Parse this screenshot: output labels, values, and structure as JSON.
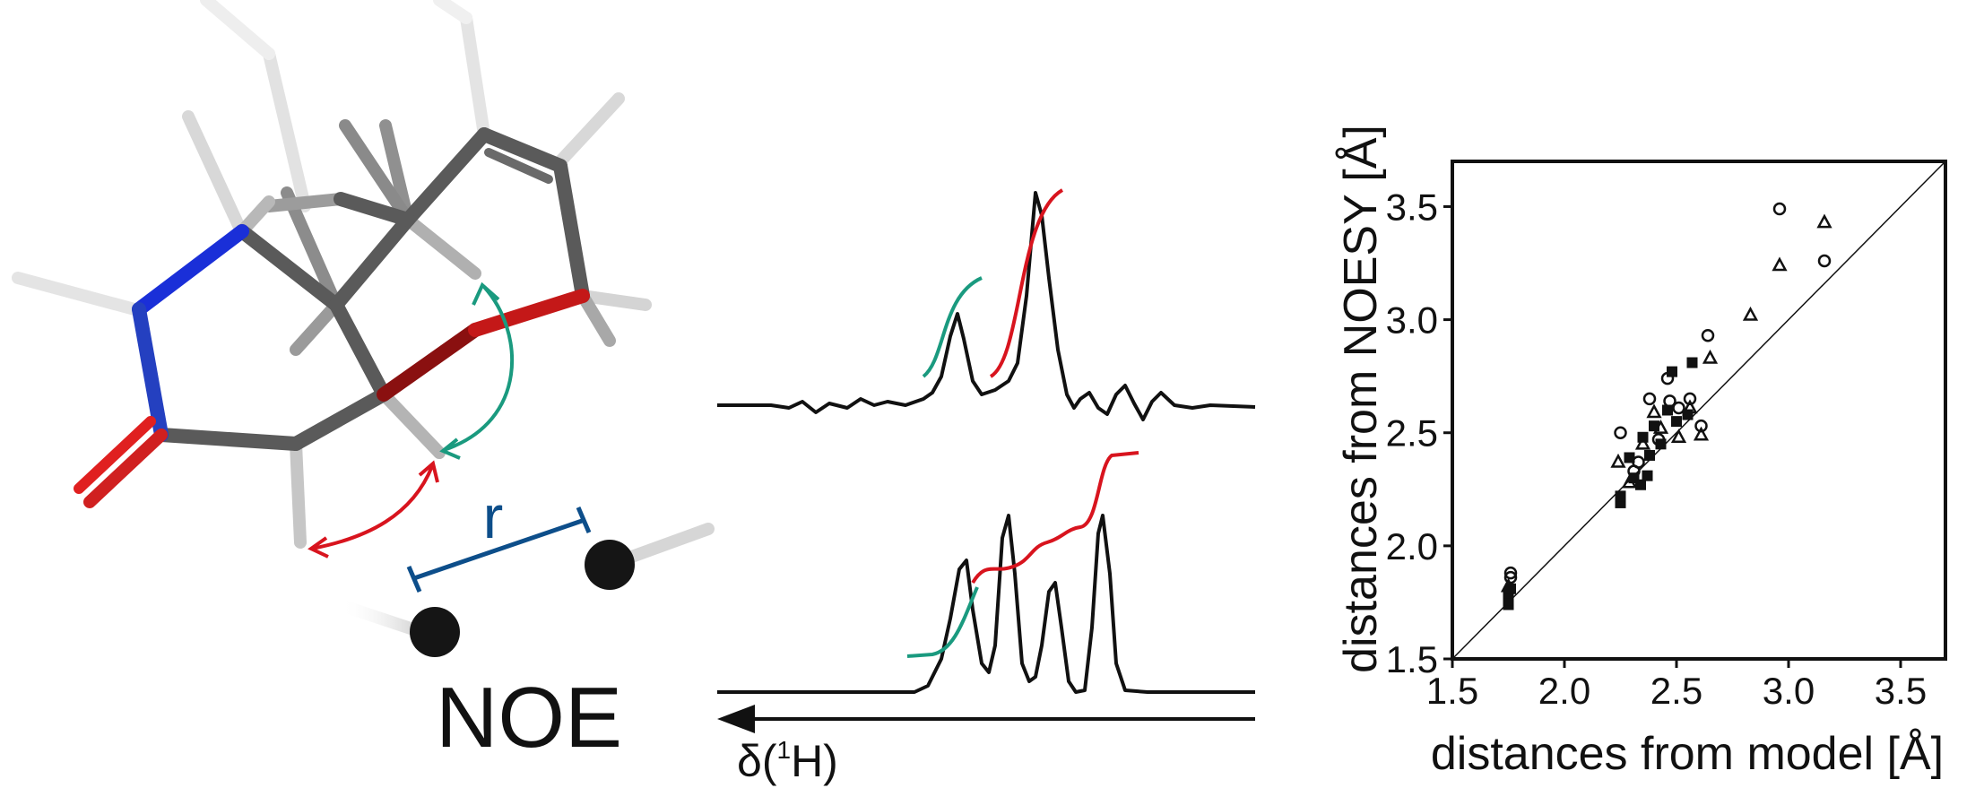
{
  "molecule_panel": {
    "distance_label": "r",
    "title": "NOE"
  },
  "spectra_panel": {
    "axis_label_delta": "δ(",
    "axis_label_sup": "1",
    "axis_label_end": "H)"
  },
  "colors": {
    "noe_arrow_red": "#d8141e",
    "noe_arrow_green": "#1a9a7f",
    "distance_bar_blue": "#0d4e8a",
    "oxygen_red": "#e02020",
    "nitrogen_blue": "#1a2fd8",
    "carbon_grey": "#5a5a5a"
  },
  "chart_data": {
    "type": "scatter",
    "xlabel": "distances from model [Å]",
    "ylabel": "distances from NOESY [Å]",
    "xlim": [
      1.5,
      3.7
    ],
    "ylim": [
      1.5,
      3.7
    ],
    "xticks": [
      "1.5",
      "2.0",
      "2.5",
      "3.0",
      "3.5"
    ],
    "yticks": [
      "1.5",
      "2.0",
      "2.5",
      "3.0",
      "3.5"
    ],
    "diagonal": true,
    "series": [
      {
        "marker": "circle",
        "points": [
          [
            1.76,
            1.88
          ],
          [
            1.76,
            1.86
          ],
          [
            2.25,
            2.5
          ],
          [
            2.31,
            2.33
          ],
          [
            2.33,
            2.37
          ],
          [
            2.38,
            2.65
          ],
          [
            2.42,
            2.47
          ],
          [
            2.46,
            2.74
          ],
          [
            2.47,
            2.64
          ],
          [
            2.51,
            2.61
          ],
          [
            2.56,
            2.65
          ],
          [
            2.61,
            2.53
          ],
          [
            2.64,
            2.93
          ],
          [
            2.96,
            3.49
          ],
          [
            3.16,
            3.26
          ]
        ]
      },
      {
        "marker": "triangle",
        "points": [
          [
            1.75,
            1.82
          ],
          [
            2.24,
            2.37
          ],
          [
            2.29,
            2.28
          ],
          [
            2.35,
            2.45
          ],
          [
            2.4,
            2.59
          ],
          [
            2.43,
            2.52
          ],
          [
            2.51,
            2.48
          ],
          [
            2.56,
            2.61
          ],
          [
            2.61,
            2.49
          ],
          [
            2.65,
            2.83
          ],
          [
            2.83,
            3.02
          ],
          [
            2.96,
            3.24
          ],
          [
            3.16,
            3.43
          ]
        ]
      },
      {
        "marker": "square",
        "points": [
          [
            1.75,
            1.74
          ],
          [
            1.75,
            1.76
          ],
          [
            1.75,
            1.79
          ],
          [
            1.76,
            1.81
          ],
          [
            2.25,
            2.19
          ],
          [
            2.25,
            2.22
          ],
          [
            2.29,
            2.39
          ],
          [
            2.31,
            2.3
          ],
          [
            2.34,
            2.27
          ],
          [
            2.35,
            2.48
          ],
          [
            2.37,
            2.31
          ],
          [
            2.38,
            2.4
          ],
          [
            2.4,
            2.53
          ],
          [
            2.43,
            2.45
          ],
          [
            2.46,
            2.6
          ],
          [
            2.48,
            2.77
          ],
          [
            2.5,
            2.55
          ],
          [
            2.55,
            2.58
          ],
          [
            2.57,
            2.81
          ]
        ]
      }
    ]
  }
}
